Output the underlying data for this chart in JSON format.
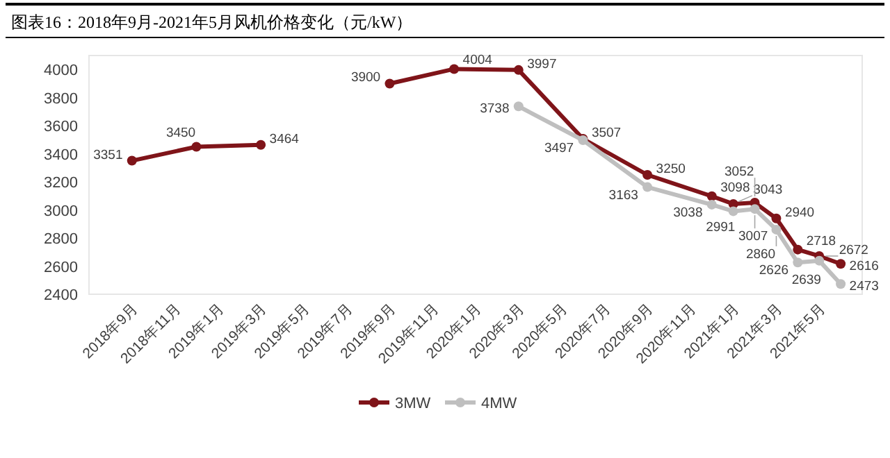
{
  "chart_data": {
    "type": "line",
    "title": "图表16：2018年9月-2021年5月风机价格变化（元/kW）",
    "xlim": [
      "2018-07",
      "2021-07"
    ],
    "xticks": [
      {
        "value": "2018-09",
        "label": "2018年9月"
      },
      {
        "value": "2018-11",
        "label": "2018年11月"
      },
      {
        "value": "2019-01",
        "label": "2019年1月"
      },
      {
        "value": "2019-03",
        "label": "2019年3月"
      },
      {
        "value": "2019-05",
        "label": "2019年5月"
      },
      {
        "value": "2019-07",
        "label": "2019年7月"
      },
      {
        "value": "2019-09",
        "label": "2019年9月"
      },
      {
        "value": "2019-11",
        "label": "2019年11月"
      },
      {
        "value": "2020-01",
        "label": "2020年1月"
      },
      {
        "value": "2020-03",
        "label": "2020年3月"
      },
      {
        "value": "2020-05",
        "label": "2020年5月"
      },
      {
        "value": "2020-07",
        "label": "2020年7月"
      },
      {
        "value": "2020-09",
        "label": "2020年9月"
      },
      {
        "value": "2020-11",
        "label": "2020年11月"
      },
      {
        "value": "2021-01",
        "label": "2021年1月"
      },
      {
        "value": "2021-03",
        "label": "2021年3月"
      },
      {
        "value": "2021-05",
        "label": "2021年5月"
      }
    ],
    "ylim": [
      2400,
      4100
    ],
    "yticks": [
      2400,
      2600,
      2800,
      3000,
      3200,
      3400,
      3600,
      3800,
      4000
    ],
    "grid": false,
    "legend": "bottom",
    "marker": "circle",
    "line_style": "solid",
    "data_labels": true,
    "series": [
      {
        "name": "3MW",
        "color": "#7f1419",
        "x": [
          "2018-09",
          "2018-12",
          "2019-03",
          "2019-06",
          "2019-09",
          "2019-12",
          "2020-03",
          "2020-06",
          "2020-09",
          "2020-12",
          "2021-01",
          "2021-02",
          "2021-03",
          "2021-04",
          "2021-05",
          "2021-06"
        ],
        "values": [
          3351,
          3450,
          3464,
          null,
          3900,
          4004,
          3997,
          3507,
          3250,
          3098,
          3043,
          3052,
          2940,
          2718,
          2672,
          2616
        ]
      },
      {
        "name": "4MW",
        "color": "#bfbfbf",
        "x": [
          "2020-03",
          "2020-06",
          "2020-09",
          "2020-12",
          "2021-01",
          "2021-02",
          "2021-03",
          "2021-04",
          "2021-05",
          "2021-06"
        ],
        "values": [
          3738,
          3497,
          3163,
          3038,
          2991,
          3007,
          2860,
          2626,
          2639,
          2473
        ]
      }
    ]
  }
}
